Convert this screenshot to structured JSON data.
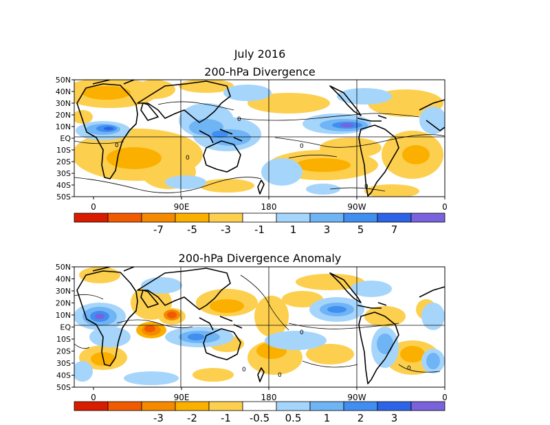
{
  "header": {
    "month_title": "July 2016"
  },
  "panels": [
    {
      "title": "200-hPa Divergence",
      "lat_labels": [
        "50N",
        "40N",
        "30N",
        "20N",
        "10N",
        "EQ",
        "10S",
        "20S",
        "30S",
        "40S",
        "50S"
      ],
      "lon_labels": [
        "0",
        "90E",
        "180",
        "90W",
        "0"
      ],
      "colorbar": {
        "colors": [
          "#d81c00",
          "#f05a00",
          "#f58a00",
          "#fbb000",
          "#fdcf4e",
          "#ffffff",
          "#a6d5fb",
          "#6fb4f5",
          "#3f8ef0",
          "#2d63e6",
          "#7a62dc"
        ],
        "labels": [
          "-7",
          "-5",
          "-3",
          "-1",
          "1",
          "3",
          "5",
          "7"
        ]
      }
    },
    {
      "title": "200-hPa Divergence Anomaly",
      "lat_labels": [
        "50N",
        "40N",
        "30N",
        "20N",
        "10N",
        "EQ",
        "10S",
        "20S",
        "30S",
        "40S",
        "50S"
      ],
      "lon_labels": [
        "0",
        "90E",
        "180",
        "90W",
        "0"
      ],
      "colorbar": {
        "colors": [
          "#d81c00",
          "#f05a00",
          "#f58a00",
          "#fbb000",
          "#fdcf4e",
          "#ffffff",
          "#a6d5fb",
          "#6fb4f5",
          "#3f8ef0",
          "#2d63e6",
          "#7a62dc"
        ],
        "labels": [
          "-3",
          "-2",
          "-1",
          "-0.5",
          "0.5",
          "1",
          "2",
          "3"
        ]
      }
    }
  ],
  "contour_label": "0"
}
